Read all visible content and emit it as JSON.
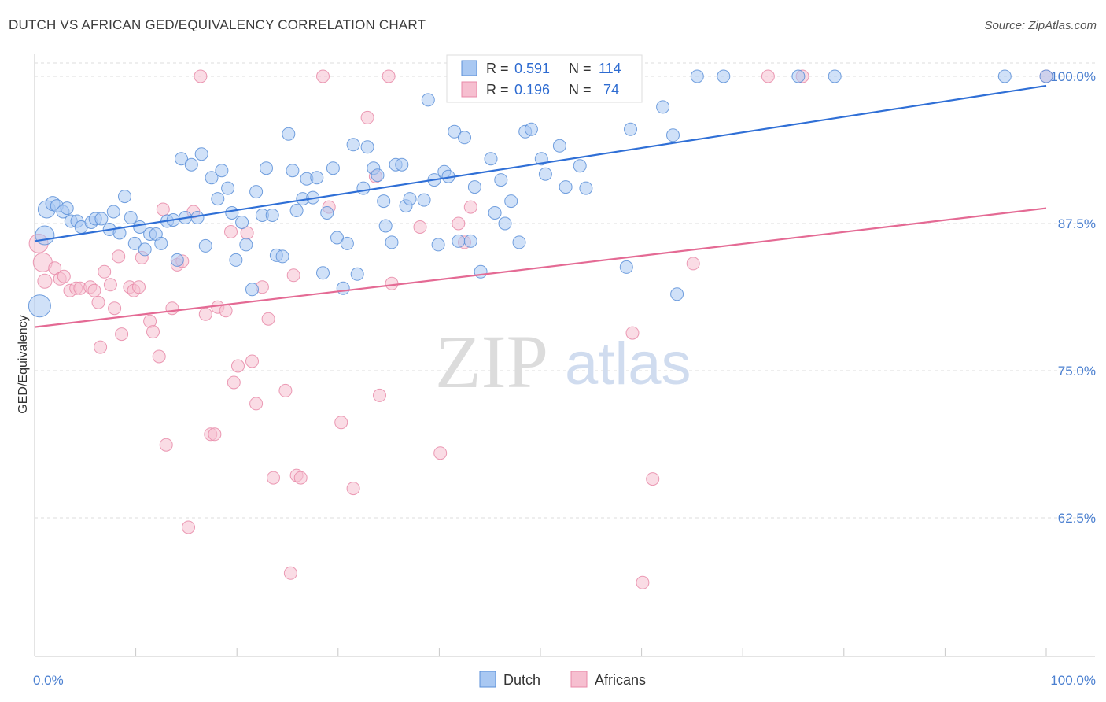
{
  "title": "DUTCH VS AFRICAN GED/EQUIVALENCY CORRELATION CHART",
  "source": "Source: ZipAtlas.com",
  "watermark": {
    "zip": "ZIP",
    "atlas": "atlas"
  },
  "legend": {
    "dutch": {
      "r_label": "R =",
      "r_value": "0.591",
      "n_label": "N =",
      "n_value": "114"
    },
    "africans": {
      "r_label": "R =",
      "r_value": "0.196",
      "n_label": "N =",
      "n_value": "74"
    }
  },
  "bottom_legend": {
    "dutch": "Dutch",
    "africans": "Africans"
  },
  "colors": {
    "dutch_fill": "#a9c8f2",
    "dutch_stroke": "#5a8fd8",
    "dutch_line": "#2f6fd6",
    "africans_fill": "#f6bfd0",
    "africans_stroke": "#e88aa8",
    "africans_line": "#e46a94",
    "grid": "#dddddd",
    "axis_text": "#4a7fd0"
  },
  "chart_data": {
    "type": "scatter",
    "title": "DUTCH VS AFRICAN GED/EQUIVALENCY CORRELATION CHART",
    "xlabel": "",
    "ylabel": "GED/Equivalency",
    "xlim": [
      0,
      100
    ],
    "ylim": [
      52.5,
      101.5
    ],
    "x_tick_labels": [
      "0.0%",
      "100.0%"
    ],
    "y_ticks": [
      62.5,
      75.0,
      87.5,
      100.0
    ],
    "y_tick_labels": [
      "62.5%",
      "75.0%",
      "87.5%",
      "100.0%"
    ],
    "grid": true,
    "legend_position": "top-center",
    "series": [
      {
        "name": "Dutch",
        "r": 0.591,
        "n": 114,
        "trend": {
          "x": [
            0,
            100
          ],
          "y": [
            86.0,
            99.2
          ]
        },
        "points": [
          [
            0.5,
            80.5,
            14
          ],
          [
            1.0,
            86.5,
            12
          ],
          [
            1.2,
            88.7,
            11
          ],
          [
            1.8,
            89.2,
            9
          ],
          [
            2.2,
            89.0,
            8
          ],
          [
            2.8,
            88.5,
            8
          ],
          [
            3.2,
            88.8,
            8
          ],
          [
            3.6,
            87.7,
            8
          ],
          [
            4.2,
            87.7,
            8
          ],
          [
            4.6,
            87.2,
            8
          ],
          [
            5.6,
            87.6,
            8
          ],
          [
            6.0,
            87.9,
            8
          ],
          [
            6.6,
            87.9,
            8
          ],
          [
            7.4,
            87.0,
            8
          ],
          [
            7.8,
            88.5,
            8
          ],
          [
            8.4,
            86.7,
            8
          ],
          [
            8.9,
            89.8,
            8
          ],
          [
            9.5,
            88.0,
            8
          ],
          [
            9.9,
            85.8,
            8
          ],
          [
            10.4,
            87.2,
            8
          ],
          [
            10.9,
            85.3,
            8
          ],
          [
            11.4,
            86.6,
            8
          ],
          [
            12.0,
            86.6,
            8
          ],
          [
            12.5,
            85.8,
            8
          ],
          [
            13.1,
            87.7,
            8
          ],
          [
            13.7,
            87.8,
            8
          ],
          [
            14.1,
            84.4,
            8
          ],
          [
            14.5,
            93.0,
            8
          ],
          [
            14.9,
            88.0,
            8
          ],
          [
            15.5,
            92.5,
            8
          ],
          [
            16.1,
            88.0,
            8
          ],
          [
            16.5,
            93.4,
            8
          ],
          [
            16.9,
            85.6,
            8
          ],
          [
            17.5,
            91.4,
            8
          ],
          [
            18.1,
            89.6,
            8
          ],
          [
            18.5,
            92.0,
            8
          ],
          [
            19.1,
            90.5,
            8
          ],
          [
            19.5,
            88.4,
            8
          ],
          [
            19.9,
            84.4,
            8
          ],
          [
            20.5,
            87.6,
            8
          ],
          [
            20.9,
            85.7,
            8
          ],
          [
            21.5,
            81.9,
            8
          ],
          [
            21.9,
            90.2,
            8
          ],
          [
            22.5,
            88.2,
            8
          ],
          [
            22.9,
            92.2,
            8
          ],
          [
            23.5,
            88.2,
            8
          ],
          [
            23.9,
            84.8,
            8
          ],
          [
            24.5,
            84.7,
            8
          ],
          [
            25.1,
            95.1,
            8
          ],
          [
            25.5,
            92.0,
            8
          ],
          [
            25.9,
            88.6,
            8
          ],
          [
            26.5,
            89.6,
            8
          ],
          [
            26.9,
            91.3,
            8
          ],
          [
            27.5,
            89.7,
            8
          ],
          [
            27.9,
            91.4,
            8
          ],
          [
            28.5,
            83.3,
            8
          ],
          [
            28.9,
            88.4,
            8
          ],
          [
            29.5,
            92.2,
            8
          ],
          [
            29.9,
            86.3,
            8
          ],
          [
            30.5,
            82.0,
            8
          ],
          [
            30.9,
            85.8,
            8
          ],
          [
            31.5,
            94.2,
            8
          ],
          [
            31.9,
            83.2,
            8
          ],
          [
            32.5,
            90.5,
            8
          ],
          [
            32.9,
            94.0,
            8
          ],
          [
            33.5,
            92.2,
            8
          ],
          [
            33.9,
            91.6,
            8
          ],
          [
            34.5,
            89.4,
            8
          ],
          [
            34.7,
            87.3,
            8
          ],
          [
            35.3,
            85.9,
            8
          ],
          [
            35.7,
            92.5,
            8
          ],
          [
            36.3,
            92.5,
            8
          ],
          [
            36.7,
            89.0,
            8
          ],
          [
            37.1,
            89.6,
            8
          ],
          [
            38.5,
            89.5,
            8
          ],
          [
            38.9,
            98.0,
            8
          ],
          [
            39.5,
            91.2,
            8
          ],
          [
            39.9,
            85.7,
            8
          ],
          [
            40.5,
            91.9,
            8
          ],
          [
            40.9,
            91.5,
            8
          ],
          [
            41.5,
            95.3,
            8
          ],
          [
            41.9,
            86.0,
            8
          ],
          [
            42.5,
            94.8,
            8
          ],
          [
            43.1,
            86.0,
            8
          ],
          [
            43.5,
            90.6,
            8
          ],
          [
            44.1,
            83.4,
            8
          ],
          [
            45.1,
            93.0,
            8
          ],
          [
            45.5,
            88.4,
            8
          ],
          [
            46.1,
            91.2,
            8
          ],
          [
            46.5,
            87.5,
            8
          ],
          [
            47.1,
            89.4,
            8
          ],
          [
            47.9,
            85.9,
            8
          ],
          [
            48.5,
            95.3,
            8
          ],
          [
            49.1,
            95.5,
            8
          ],
          [
            50.1,
            93.0,
            8
          ],
          [
            50.5,
            91.7,
            8
          ],
          [
            51.1,
            100.0,
            8
          ],
          [
            51.9,
            94.1,
            8
          ],
          [
            52.5,
            90.6,
            8
          ],
          [
            53.9,
            92.4,
            8
          ],
          [
            54.5,
            90.5,
            8
          ],
          [
            58.5,
            83.8,
            8
          ],
          [
            58.9,
            95.5,
            8
          ],
          [
            62.1,
            97.4,
            8
          ],
          [
            63.1,
            95.0,
            8
          ],
          [
            63.5,
            81.5,
            8
          ],
          [
            65.5,
            100.0,
            8
          ],
          [
            68.1,
            100.0,
            8
          ],
          [
            75.5,
            100.0,
            8
          ],
          [
            79.1,
            100.0,
            8
          ],
          [
            95.9,
            100.0,
            8
          ],
          [
            100.0,
            100.0,
            8
          ]
        ]
      },
      {
        "name": "Africans",
        "r": 0.196,
        "n": 74,
        "trend": {
          "x": [
            0,
            100
          ],
          "y": [
            78.7,
            88.8
          ]
        },
        "points": [
          [
            0.4,
            85.8,
            12
          ],
          [
            0.8,
            84.2,
            12
          ],
          [
            1.0,
            82.6,
            9
          ],
          [
            2.0,
            83.7,
            8
          ],
          [
            2.5,
            82.8,
            8
          ],
          [
            2.9,
            83.0,
            8
          ],
          [
            3.5,
            81.8,
            8
          ],
          [
            4.1,
            82.0,
            8
          ],
          [
            4.5,
            82.0,
            8
          ],
          [
            5.5,
            82.1,
            8
          ],
          [
            5.9,
            81.8,
            8
          ],
          [
            6.3,
            80.8,
            8
          ],
          [
            6.5,
            77.0,
            8
          ],
          [
            6.9,
            83.4,
            8
          ],
          [
            7.5,
            82.3,
            8
          ],
          [
            7.9,
            80.3,
            8
          ],
          [
            8.3,
            84.7,
            8
          ],
          [
            8.6,
            78.1,
            8
          ],
          [
            9.4,
            82.1,
            8
          ],
          [
            9.8,
            81.8,
            8
          ],
          [
            10.3,
            82.1,
            8
          ],
          [
            10.6,
            84.6,
            8
          ],
          [
            11.4,
            79.2,
            8
          ],
          [
            11.7,
            78.3,
            8
          ],
          [
            12.3,
            76.2,
            8
          ],
          [
            12.7,
            88.7,
            8
          ],
          [
            13.0,
            68.7,
            8
          ],
          [
            13.6,
            80.3,
            8
          ],
          [
            14.1,
            84.0,
            8
          ],
          [
            14.6,
            84.3,
            8
          ],
          [
            15.2,
            61.7,
            8
          ],
          [
            15.7,
            88.5,
            8
          ],
          [
            16.4,
            100.0,
            8
          ],
          [
            16.9,
            79.8,
            8
          ],
          [
            17.4,
            69.6,
            8
          ],
          [
            17.8,
            69.6,
            8
          ],
          [
            18.1,
            80.4,
            8
          ],
          [
            18.9,
            80.1,
            8
          ],
          [
            19.4,
            86.8,
            8
          ],
          [
            19.7,
            74.0,
            8
          ],
          [
            20.1,
            75.4,
            8
          ],
          [
            21.0,
            86.7,
            8
          ],
          [
            21.5,
            75.8,
            8
          ],
          [
            21.9,
            72.2,
            8
          ],
          [
            22.5,
            82.1,
            8
          ],
          [
            23.1,
            79.4,
            8
          ],
          [
            23.6,
            65.9,
            8
          ],
          [
            24.8,
            73.3,
            8
          ],
          [
            25.3,
            57.8,
            8
          ],
          [
            25.6,
            83.1,
            8
          ],
          [
            25.9,
            66.1,
            8
          ],
          [
            26.3,
            65.9,
            8
          ],
          [
            28.5,
            100.0,
            8
          ],
          [
            29.1,
            88.9,
            8
          ],
          [
            30.3,
            70.6,
            8
          ],
          [
            31.5,
            65.0,
            8
          ],
          [
            32.9,
            96.5,
            8
          ],
          [
            33.7,
            91.5,
            8
          ],
          [
            34.1,
            72.9,
            8
          ],
          [
            35.0,
            100.0,
            8
          ],
          [
            35.3,
            82.4,
            8
          ],
          [
            38.1,
            87.2,
            8
          ],
          [
            40.1,
            68.0,
            8
          ],
          [
            41.9,
            87.5,
            8
          ],
          [
            42.5,
            85.9,
            8
          ],
          [
            43.1,
            88.9,
            8
          ],
          [
            55.5,
            100.0,
            8
          ],
          [
            59.1,
            78.2,
            8
          ],
          [
            60.1,
            57.0,
            8
          ],
          [
            61.1,
            65.8,
            8
          ],
          [
            65.1,
            84.1,
            8
          ],
          [
            72.5,
            100.0,
            8
          ],
          [
            75.9,
            100.0,
            8
          ],
          [
            100.0,
            100.0,
            8
          ]
        ]
      }
    ]
  }
}
